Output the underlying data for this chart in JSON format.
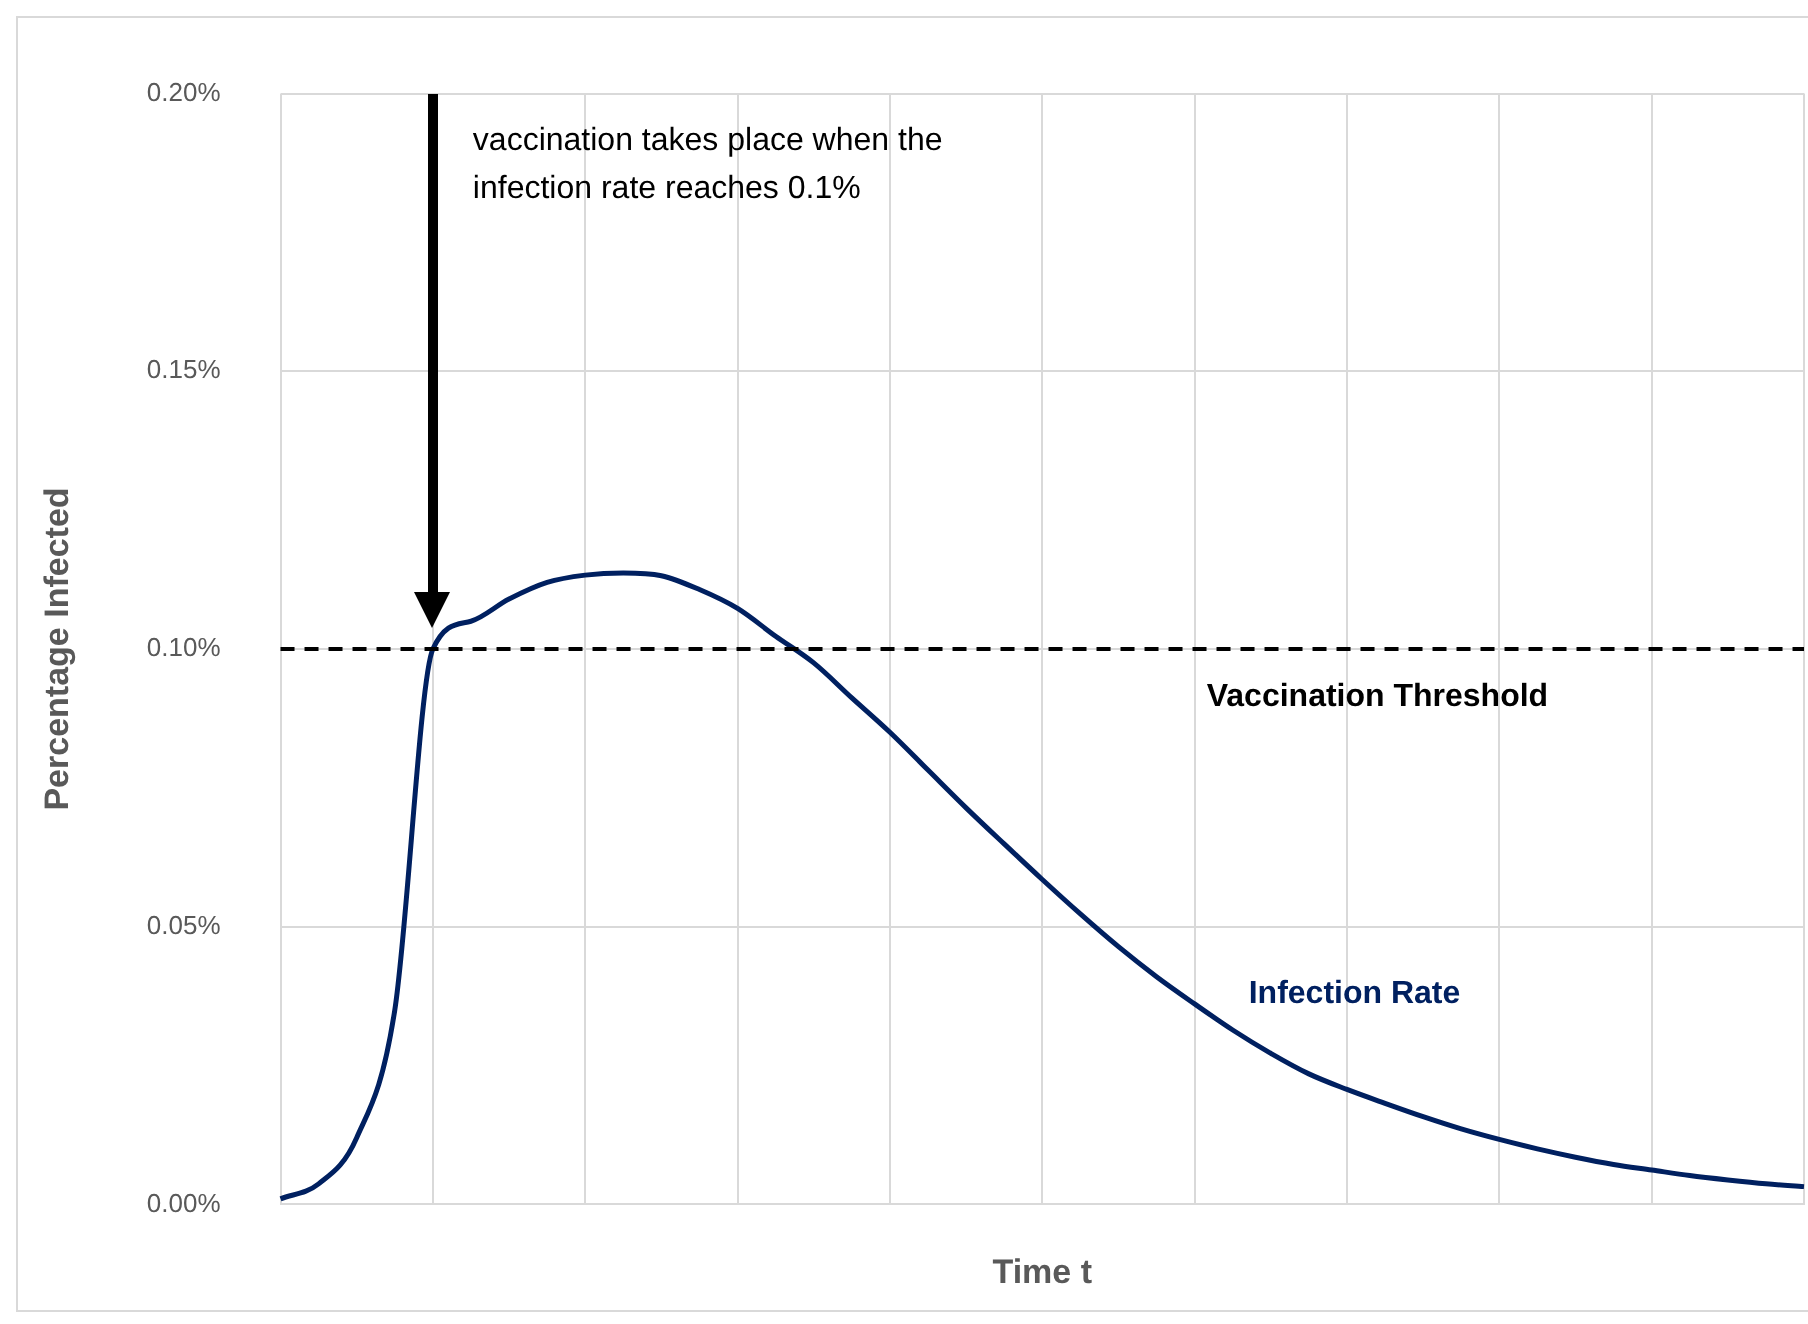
{
  "chart_data": {
    "type": "line",
    "xlabel": "Time t",
    "ylabel": "Percentage Infected",
    "categories": [
      null,
      null,
      null,
      null,
      null,
      null,
      null,
      null,
      null,
      null,
      null,
      null,
      null,
      null,
      null,
      null,
      null,
      null,
      null,
      null,
      null,
      null,
      null,
      null,
      null,
      null,
      null,
      null,
      null,
      null,
      null,
      null,
      null,
      null,
      null,
      null,
      null,
      null,
      null,
      null,
      null
    ],
    "series": [
      {
        "name": "Infection Rate",
        "color": "#002060",
        "values": [
          0.001,
          0.0037,
          0.012,
          0.035,
          0.1,
          0.105,
          0.109,
          0.112,
          0.1133,
          0.1137,
          0.1132,
          0.1107,
          0.1073,
          0.1023,
          0.0975,
          0.0912,
          0.085,
          0.0782,
          0.0714,
          0.0649,
          0.0585,
          0.0523,
          0.0464,
          0.041,
          0.0361,
          0.0314,
          0.0272,
          0.0235,
          0.0207,
          0.0182,
          0.0158,
          0.0136,
          0.0117,
          0.01,
          0.0085,
          0.0072,
          0.0062,
          0.0052,
          0.0044,
          0.0037,
          0.0032
        ]
      }
    ],
    "ylim": [
      0,
      0.2
    ],
    "yticks": [
      {
        "value": 0,
        "label": "0.00%"
      },
      {
        "value": 0.05,
        "label": "0.05%"
      },
      {
        "value": 0.1,
        "label": "0.10%"
      },
      {
        "value": 0.15,
        "label": "0.15%"
      },
      {
        "value": 0.2,
        "label": "0.20%"
      }
    ],
    "ref_lines": [
      {
        "axis": "y",
        "value": 0.1,
        "label": "Vaccination Threshold",
        "color": "#000000",
        "line_style": "dashed"
      }
    ],
    "annotations": [
      "vaccination takes place when the infection rate reaches 0.1%"
    ],
    "grid": true,
    "legend": false,
    "marker": "none",
    "line_style": "solid"
  }
}
